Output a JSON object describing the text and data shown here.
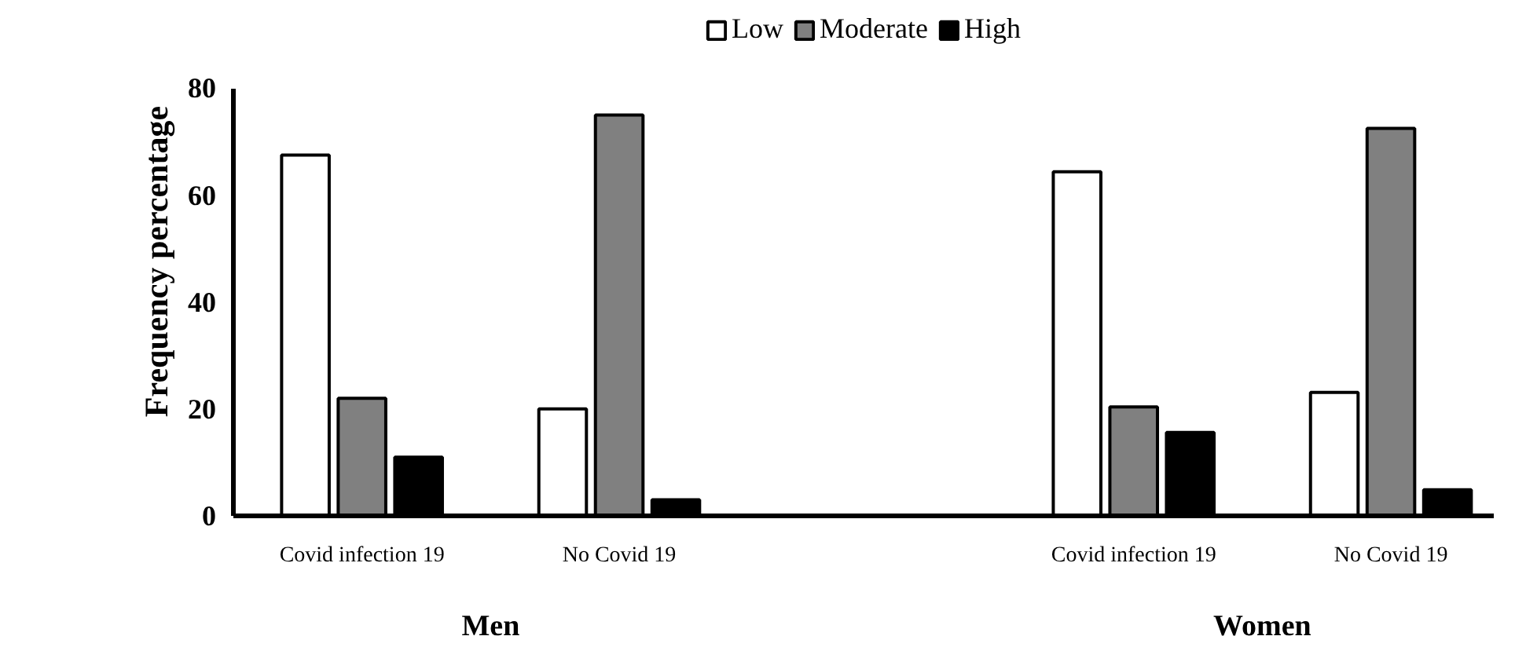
{
  "chart_data": {
    "type": "bar",
    "ylabel": "Frequency percentage",
    "categories": [
      "Covid infection 19",
      "No Covid 19",
      null,
      "Covid infection 19",
      "No Covid 19"
    ],
    "series": [
      {
        "name": "Low",
        "color": "#ffffff",
        "values": [
          67.5,
          20,
          null,
          64.4,
          23.1
        ]
      },
      {
        "name": "Moderate",
        "color": "#808080",
        "values": [
          22,
          75,
          null,
          20.4,
          72.5
        ]
      },
      {
        "name": "High",
        "color": "#000000",
        "values": [
          11,
          3,
          null,
          15.6,
          4.9
        ]
      }
    ],
    "ylim": [
      0,
      80
    ],
    "yticks": [
      0,
      20,
      40,
      60,
      80
    ],
    "grid": false,
    "legend": "top",
    "annotations": [
      "Men",
      "Women"
    ]
  }
}
